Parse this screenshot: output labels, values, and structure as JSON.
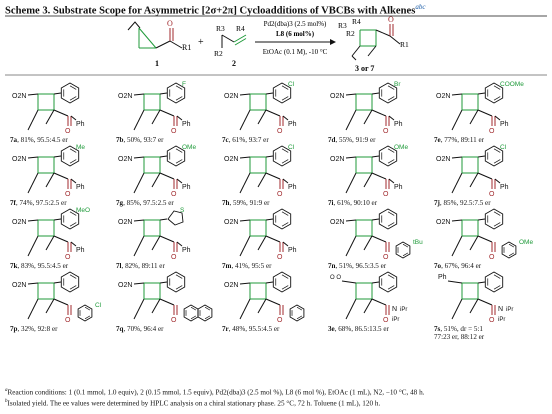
{
  "title": "Scheme 3. Substrate Scope for Asymmetric [2σ+2π] Cycloadditions of VBCBs with Alkenes",
  "title_sup": "abc",
  "reaction": {
    "cond1": "Pd2(dba)3 (2.5 mol%)",
    "cond2": "L8 (6 mol%)",
    "cond3": "EtOAc (0.1 M), -10 °C",
    "lbl1": "1",
    "lbl2": "2",
    "lbl3": "3 or 7",
    "plus": "+",
    "r1": "R1",
    "r2": "R2",
    "r3": "R3",
    "r4": "R4",
    "o": "O"
  },
  "colors": {
    "green": "#1f9a3a",
    "red": "#a0282c",
    "blue": "#1f5fa8",
    "black": "#111111"
  },
  "entries": [
    {
      "id": "7a",
      "rest": ", 81%, 95.5:4.5 er",
      "ar": "phenyl",
      "sub": "",
      "top": "NO2-aryl",
      "bottom": "Ph"
    },
    {
      "id": "7b",
      "rest": ", 50%, 93:7 er",
      "ar": "4-F-phenyl",
      "sub": "F",
      "top": "NO2-aryl",
      "bottom": "Ph"
    },
    {
      "id": "7c",
      "rest": ", 61%, 93:7 er",
      "ar": "4-Cl-phenyl",
      "sub": "Cl",
      "top": "NO2-aryl",
      "bottom": "Ph"
    },
    {
      "id": "7d",
      "rest": ", 55%, 91:9 er",
      "ar": "4-Br-phenyl",
      "sub": "Br",
      "top": "NO2-aryl",
      "bottom": "Ph"
    },
    {
      "id": "7e",
      "rest": ", 77%, 89:11 er",
      "ar": "4-CO2Me-phenyl",
      "sub": "COOMe",
      "top": "NO2-aryl",
      "bottom": "Ph"
    },
    {
      "id": "7f",
      "rest": ", 74%, 97.5:2.5 er",
      "ar": "4-Me-phenyl",
      "sub": "Me",
      "top": "NO2-aryl",
      "bottom": "Ph"
    },
    {
      "id": "7g",
      "rest": ", 85%, 97.5:2.5 er",
      "ar": "4-OMe-phenyl",
      "sub": "OMe",
      "top": "NO2-aryl",
      "bottom": "Ph"
    },
    {
      "id": "7h",
      "rest": ", 59%, 91:9 er",
      "ar": "3-Cl-phenyl",
      "sub": "Cl",
      "top": "NO2-aryl",
      "bottom": "Ph"
    },
    {
      "id": "7i",
      "rest": ", 61%, 90:10 er",
      "ar": "3-OMe-phenyl",
      "sub": "OMe",
      "top": "NO2-aryl",
      "bottom": "Ph"
    },
    {
      "id": "7j",
      "rest": ", 85%, 92.5:7.5 er",
      "ar": "2-Cl-phenyl",
      "sub": "Cl",
      "top": "NO2-aryl",
      "bottom": "Ph"
    },
    {
      "id": "7k",
      "rest": ", 83%, 95.5:4.5 er",
      "ar": "2-OMe-phenyl",
      "sub": "MeO",
      "top": "NO2-aryl",
      "bottom": "Ph"
    },
    {
      "id": "7l",
      "rest": ", 82%, 89:11 er",
      "ar": "thienyl",
      "sub": "S",
      "top": "NO2-aryl",
      "bottom": "Ph"
    },
    {
      "id": "7m",
      "rest": ", 41%, 95:5 er",
      "ar": "cyclohexyl",
      "sub": "",
      "top": "NO2-aryl",
      "bottom": "Ph"
    },
    {
      "id": "7n",
      "rest": ", 51%, 96.5:3.5 er",
      "ar": "phenyl",
      "sub": "tBu",
      "top": "NO2-Ph",
      "bottom": "aryl"
    },
    {
      "id": "7o",
      "rest": ", 67%, 96:4 er",
      "ar": "phenyl",
      "sub": "OMe",
      "top": "NO2-Ph",
      "bottom": "aryl"
    },
    {
      "id": "7p",
      "rest": ", 32%, 92:8 er",
      "ar": "phenyl",
      "sub": "Cl",
      "top": "NO2-Ph",
      "bottom": "aryl"
    },
    {
      "id": "7q",
      "rest": ", 70%, 96:4 er",
      "ar": "phenyl",
      "sub": "",
      "top": "NO2-Ph",
      "bottom": "naphthyl"
    },
    {
      "id": "7r",
      "rest": ", 48%, 95.5:4.5 er",
      "ar": "phenyl",
      "sub": "",
      "top": "NO2-Ph",
      "bottom": "cyclohexyl"
    },
    {
      "id": "3e",
      "rest": ", 68%, 86.5:13.5 er",
      "ar": "phenyl",
      "sub": "",
      "top": "dioxo-Ph",
      "bottom": "amide"
    },
    {
      "id": "7s",
      "rest": ", 51%, dr = 5:1",
      "rest2": "77:23 er, 88:12 er",
      "ar": "phenyl",
      "sub": "",
      "top": "oxazolone-Ph",
      "bottom": "amide"
    }
  ],
  "group_labels": {
    "no2": "O2N",
    "ph": "Ph",
    "npr": "N",
    "iPr1": "iPr",
    "iPr2": "iPr",
    "ph2": "Ph"
  },
  "footnote_line1": "Reaction conditions: 1 (0.1 mmol, 1.0 equiv), 2 (0.15 mmol, 1.5 equiv), Pd2(dba)3 (2.5 mol %), L8 (6 mol %), EtOAc (1 mL), N2, −10 °C, 48 h.",
  "footnote_line2": "Isolated yield. The ee values were determined by HPLC analysis on a chiral stationary phase. 25 °C, 72 h. Toluene (1 mL), 120 h.",
  "footnote_sups": {
    "a": "a",
    "b": "b",
    "c": "c",
    "d": "d"
  }
}
